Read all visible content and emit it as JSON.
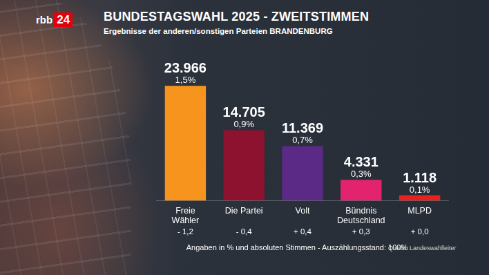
{
  "chart_data": {
    "type": "bar",
    "title": "BUNDESTAGSWAHL 2025 - ZWEITSTIMMEN",
    "subtitle": "Ergebnisse der anderen/sonstigen Parteien BRANDENBURG",
    "logo": {
      "text": "rbb",
      "badge": "24"
    },
    "categories": [
      "Freie Wähler",
      "Die Partei",
      "Volt",
      "Bündnis Deutschland",
      "MLPD"
    ],
    "values": [
      23966,
      14705,
      11369,
      4331,
      1118
    ],
    "value_labels": [
      "23.966",
      "14.705",
      "11.369",
      "4.331",
      "1.118"
    ],
    "percent": [
      1.5,
      0.9,
      0.7,
      0.3,
      0.1
    ],
    "percent_labels": [
      "1,5%",
      "0,9%",
      "0,7%",
      "0,3%",
      "0,1%"
    ],
    "change": [
      -1.2,
      -0.4,
      0.4,
      0.3,
      0.0
    ],
    "change_labels": [
      "- 1,2",
      "- 0,4",
      "+ 0,4",
      "+ 0,3",
      "+ 0,0"
    ],
    "colors": [
      "#f7941d",
      "#8c1230",
      "#5b2a86",
      "#e3236e",
      "#e8201e"
    ],
    "ylim": [
      0,
      24000
    ],
    "grid": false,
    "tick_labels": "x",
    "data_labels": true,
    "note": "Angaben in % und absoluten Stimmen - Auszählungsstand: 100%",
    "source": "Quelle: Landeswahlleiter"
  }
}
